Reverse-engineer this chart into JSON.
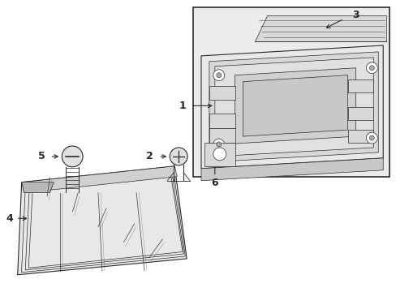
{
  "bg_color": "#ffffff",
  "line_color": "#2a2a2a",
  "box_fill": "#ebebeb",
  "panel_fill": "#e0e0e0",
  "panel_dark": "#c8c8c8",
  "panel_light": "#f0f0f0",
  "figsize": [
    4.89,
    3.6
  ],
  "dpi": 100
}
